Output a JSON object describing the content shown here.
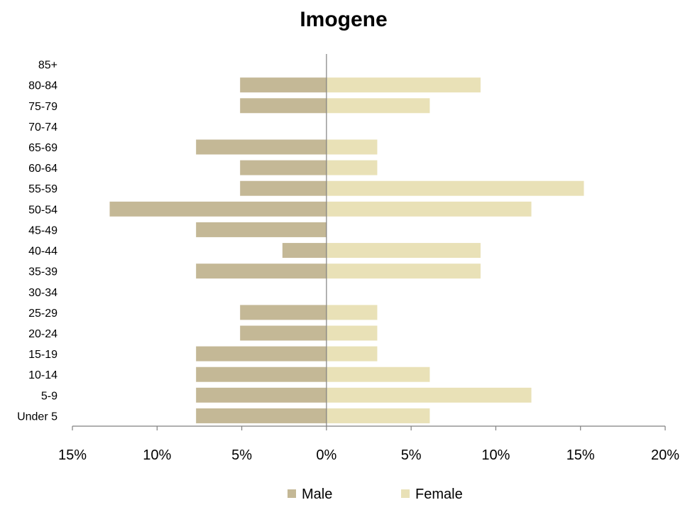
{
  "chart_data": {
    "type": "bar",
    "orientation": "horizontal",
    "title": "Imogene",
    "categories": [
      "85+",
      "80-84",
      "75-79",
      "70-74",
      "65-69",
      "60-64",
      "55-59",
      "50-54",
      "45-49",
      "40-44",
      "35-39",
      "30-34",
      "25-29",
      "20-24",
      "15-19",
      "10-14",
      "5-9",
      "Under 5"
    ],
    "series": [
      {
        "name": "Male",
        "color": "#c4b896",
        "values": [
          0,
          5.1,
          5.1,
          0,
          7.7,
          5.1,
          5.1,
          12.8,
          7.7,
          2.6,
          7.7,
          0,
          5.1,
          5.1,
          7.7,
          7.7,
          7.7,
          7.7
        ]
      },
      {
        "name": "Female",
        "color": "#e9e1b7",
        "values": [
          0,
          9.1,
          6.1,
          0,
          3.0,
          3.0,
          15.2,
          12.1,
          0,
          9.1,
          9.1,
          0,
          3.0,
          3.0,
          3.0,
          6.1,
          12.1,
          6.1
        ]
      }
    ],
    "xlim": [
      -15,
      20
    ],
    "xticks": [
      -15,
      -10,
      -5,
      0,
      5,
      10,
      15,
      20
    ],
    "xtick_labels": [
      "15%",
      "10%",
      "5%",
      "0%",
      "5%",
      "10%",
      "15%",
      "20%"
    ],
    "xlabel": "",
    "ylabel": "",
    "grid": false,
    "legend_position": "bottom"
  }
}
